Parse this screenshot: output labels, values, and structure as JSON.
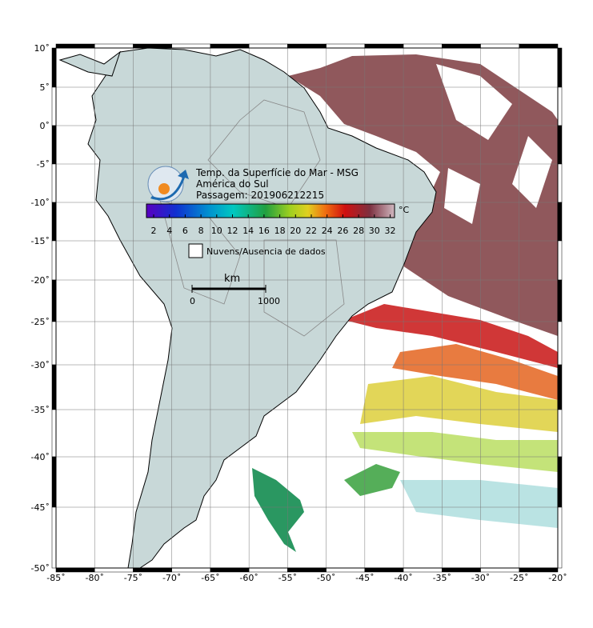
{
  "header": {
    "title": "Temp. da Superfície do Mar - MSG",
    "region": "América do Sul",
    "pass": "Passagem: 201906212215"
  },
  "colorbar": {
    "ticks": [
      2,
      4,
      6,
      8,
      10,
      12,
      14,
      16,
      18,
      20,
      22,
      24,
      26,
      28,
      30,
      32
    ],
    "unit": "°C"
  },
  "legend": {
    "label": "Nuvens/Ausencia de dados"
  },
  "scalebar": {
    "unit": "km",
    "start": "0",
    "end": "1000"
  },
  "axes": {
    "lat_labels": [
      "10˚",
      "5˚",
      "0˚",
      "-5˚",
      "-10˚",
      "-15˚",
      "-20˚",
      "-25˚",
      "-30˚",
      "-35˚",
      "-40˚",
      "-45˚",
      "-50˚"
    ],
    "lon_labels": [
      "-85˚",
      "-80˚",
      "-75˚",
      "-70˚",
      "-65˚",
      "-60˚",
      "-55˚",
      "-50˚",
      "-45˚",
      "-40˚",
      "-35˚",
      "-30˚",
      "-25˚",
      "-20˚"
    ]
  }
}
